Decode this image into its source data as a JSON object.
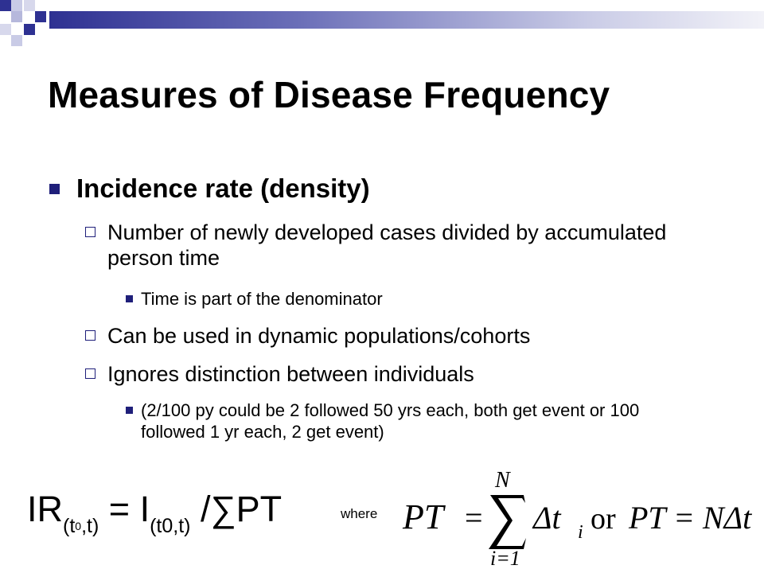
{
  "title": "Measures of Disease Frequency",
  "bullet": "Incidence rate (density)",
  "sub_items": [
    "Number of newly developed cases divided by accumulated person time",
    "Can be used in dynamic populations/cohorts",
    "Ignores distinction between individuals"
  ],
  "notes": [
    "Time is part of the denominator",
    "(2/100 py could be 2  followed 50 yrs each, both get event or 100 followed 1 yr each, 2 get event)"
  ],
  "formula": {
    "ir": "IR",
    "ir_sub_open": "(t",
    "ir_sub_zero": "0",
    "ir_sub_close": ",t)",
    "eq_i": " = I",
    "i_sub": "(t0,t)",
    "tail": " /∑PT",
    "where": "where"
  },
  "equation": {
    "lhs": "PT",
    "equals": "=",
    "upper": "N",
    "lower": "i=1",
    "delta": "Δt",
    "delta_sub": "i",
    "or": "or",
    "rhs": "PT = NΔt"
  },
  "colors": {
    "accent": "#1f1f7a",
    "bar": "#2e3192"
  }
}
